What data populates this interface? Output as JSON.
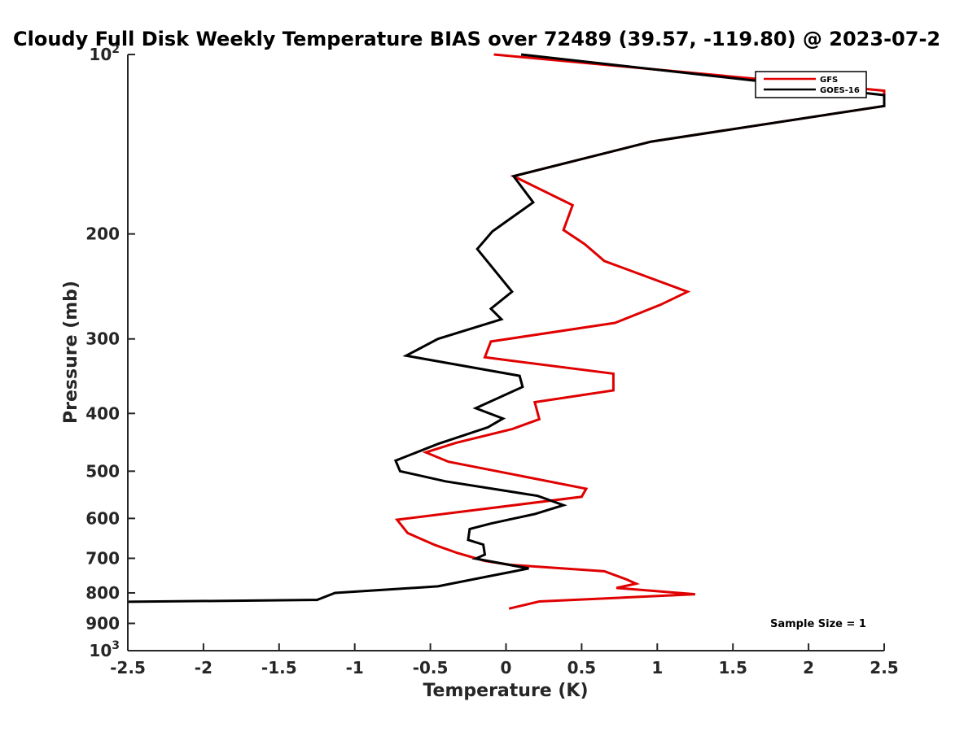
{
  "chart_data": {
    "type": "line",
    "title": "Cloudy Full Disk Weekly Temperature BIAS over 72489 (39.57, -119.80) @ 2023-07-2",
    "xlabel": "Temperature (K)",
    "ylabel": "Pressure (mb)",
    "xlim": [
      -2.5,
      2.5
    ],
    "ylim": [
      1000,
      100
    ],
    "yscale": "log",
    "x_ticks": [
      -2.5,
      -2,
      -1.5,
      -1,
      -0.5,
      0,
      0.5,
      1,
      1.5,
      2,
      2.5
    ],
    "x_tick_labels": [
      "-2.5",
      "-2",
      "-1.5",
      "-1",
      "-0.5",
      "0",
      "0.5",
      "1",
      "1.5",
      "2",
      "2.5"
    ],
    "y_ticks": [
      100,
      200,
      300,
      400,
      500,
      600,
      700,
      800,
      900,
      1000
    ],
    "y_tick_labels": [
      {
        "base": "10",
        "exp": "2"
      },
      {
        "base": "200"
      },
      {
        "base": "300"
      },
      {
        "base": "400"
      },
      {
        "base": "500"
      },
      {
        "base": "600"
      },
      {
        "base": "700"
      },
      {
        "base": "800"
      },
      {
        "base": "900"
      },
      {
        "base": "10",
        "exp": "3"
      }
    ],
    "grid": false,
    "legend_position": "top-right",
    "annotation": "Sample Size = 1",
    "series": [
      {
        "name": "GFS",
        "color": "#e00000",
        "points": [
          [
            -0.08,
            100
          ],
          [
            2.5,
            115
          ],
          [
            2.5,
            122
          ],
          [
            0.96,
            140
          ],
          [
            0.05,
            160
          ],
          [
            0.44,
            179
          ],
          [
            0.38,
            197
          ],
          [
            0.52,
            208
          ],
          [
            0.65,
            222
          ],
          [
            1.2,
            250
          ],
          [
            1.02,
            263
          ],
          [
            0.72,
            282
          ],
          [
            -0.1,
            303
          ],
          [
            -0.14,
            322
          ],
          [
            0.71,
            343
          ],
          [
            0.71,
            366
          ],
          [
            0.19,
            383
          ],
          [
            0.22,
            409
          ],
          [
            0.04,
            425
          ],
          [
            -0.33,
            448
          ],
          [
            -0.53,
            465
          ],
          [
            -0.38,
            482
          ],
          [
            0.53,
            535
          ],
          [
            0.5,
            552
          ],
          [
            -0.72,
            603
          ],
          [
            -0.65,
            635
          ],
          [
            -0.47,
            665
          ],
          [
            -0.32,
            686
          ],
          [
            -0.14,
            707
          ],
          [
            0.03,
            718
          ],
          [
            0.65,
            736
          ],
          [
            0.8,
            760
          ],
          [
            0.86,
            772
          ],
          [
            0.73,
            785
          ],
          [
            1.25,
            804
          ],
          [
            0.22,
            827
          ],
          [
            0.02,
            850
          ]
        ]
      },
      {
        "name": "GOES-16",
        "color": "#000000",
        "points": [
          [
            0.1,
            100
          ],
          [
            2.5,
            117
          ],
          [
            2.5,
            122
          ],
          [
            0.96,
            140
          ],
          [
            0.05,
            160
          ],
          [
            0.18,
            177
          ],
          [
            -0.09,
            198
          ],
          [
            -0.19,
            212
          ],
          [
            0.04,
            250
          ],
          [
            -0.1,
            267
          ],
          [
            -0.03,
            278
          ],
          [
            -0.45,
            300
          ],
          [
            -0.66,
            320
          ],
          [
            0.09,
            346
          ],
          [
            0.11,
            361
          ],
          [
            -0.2,
            392
          ],
          [
            -0.02,
            408
          ],
          [
            -0.12,
            422
          ],
          [
            -0.45,
            450
          ],
          [
            -0.73,
            480
          ],
          [
            -0.7,
            500
          ],
          [
            -0.4,
            520
          ],
          [
            0.21,
            550
          ],
          [
            0.38,
            570
          ],
          [
            0.19,
            590
          ],
          [
            -0.1,
            612
          ],
          [
            -0.24,
            625
          ],
          [
            -0.25,
            652
          ],
          [
            -0.15,
            664
          ],
          [
            -0.14,
            690
          ],
          [
            -0.2,
            701
          ],
          [
            0.15,
            728
          ],
          [
            -0.11,
            750
          ],
          [
            -0.45,
            780
          ],
          [
            -1.13,
            800
          ],
          [
            -1.25,
            822
          ],
          [
            -2.5,
            828
          ]
        ]
      }
    ]
  }
}
